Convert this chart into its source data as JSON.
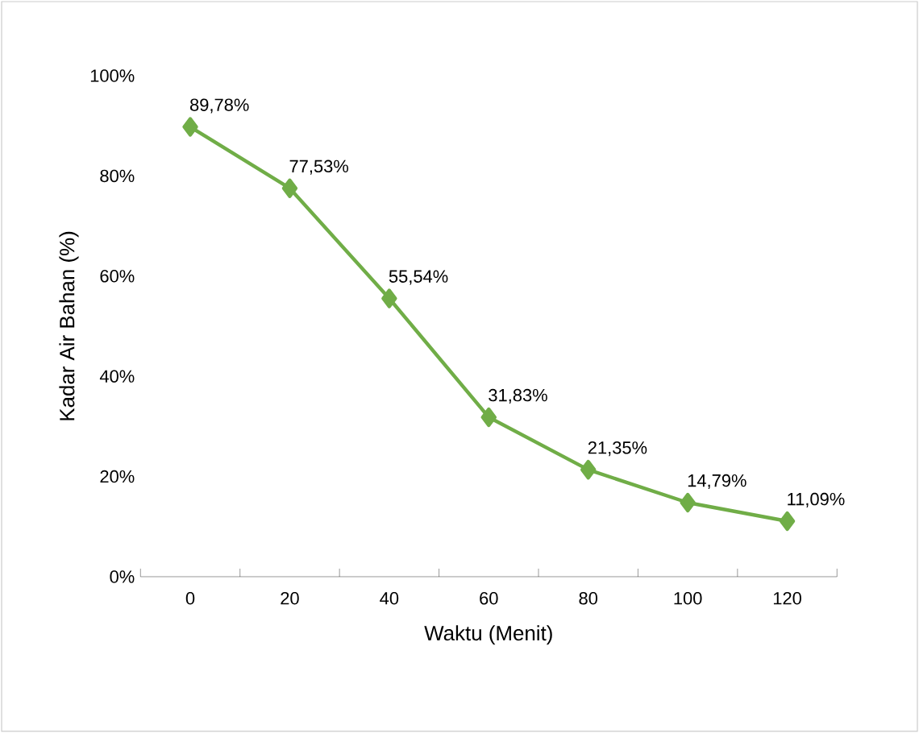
{
  "chart_data": {
    "type": "line",
    "xlabel": "Waktu (Menit)",
    "ylabel": "Kadar Air Bahan (%)",
    "categories": [
      "0",
      "20",
      "40",
      "60",
      "80",
      "100",
      "120"
    ],
    "series": [
      {
        "color": "#70ad47",
        "values": [
          89.78,
          77.53,
          55.54,
          31.83,
          21.35,
          14.79,
          11.09
        ],
        "value_labels": [
          "89,78%",
          "77,53%",
          "55,54%",
          "31,83%",
          "21,35%",
          "14,79%",
          "11,09%"
        ]
      }
    ],
    "ylim": [
      0,
      100
    ],
    "yticks": [
      {
        "value": 0,
        "label": "0%"
      },
      {
        "value": 20,
        "label": "20%"
      },
      {
        "value": 40,
        "label": "40%"
      },
      {
        "value": 60,
        "label": "60%"
      },
      {
        "value": 80,
        "label": "80%"
      },
      {
        "value": 100,
        "label": "100%"
      }
    ],
    "marker": "diamond",
    "line_style": "solid"
  }
}
